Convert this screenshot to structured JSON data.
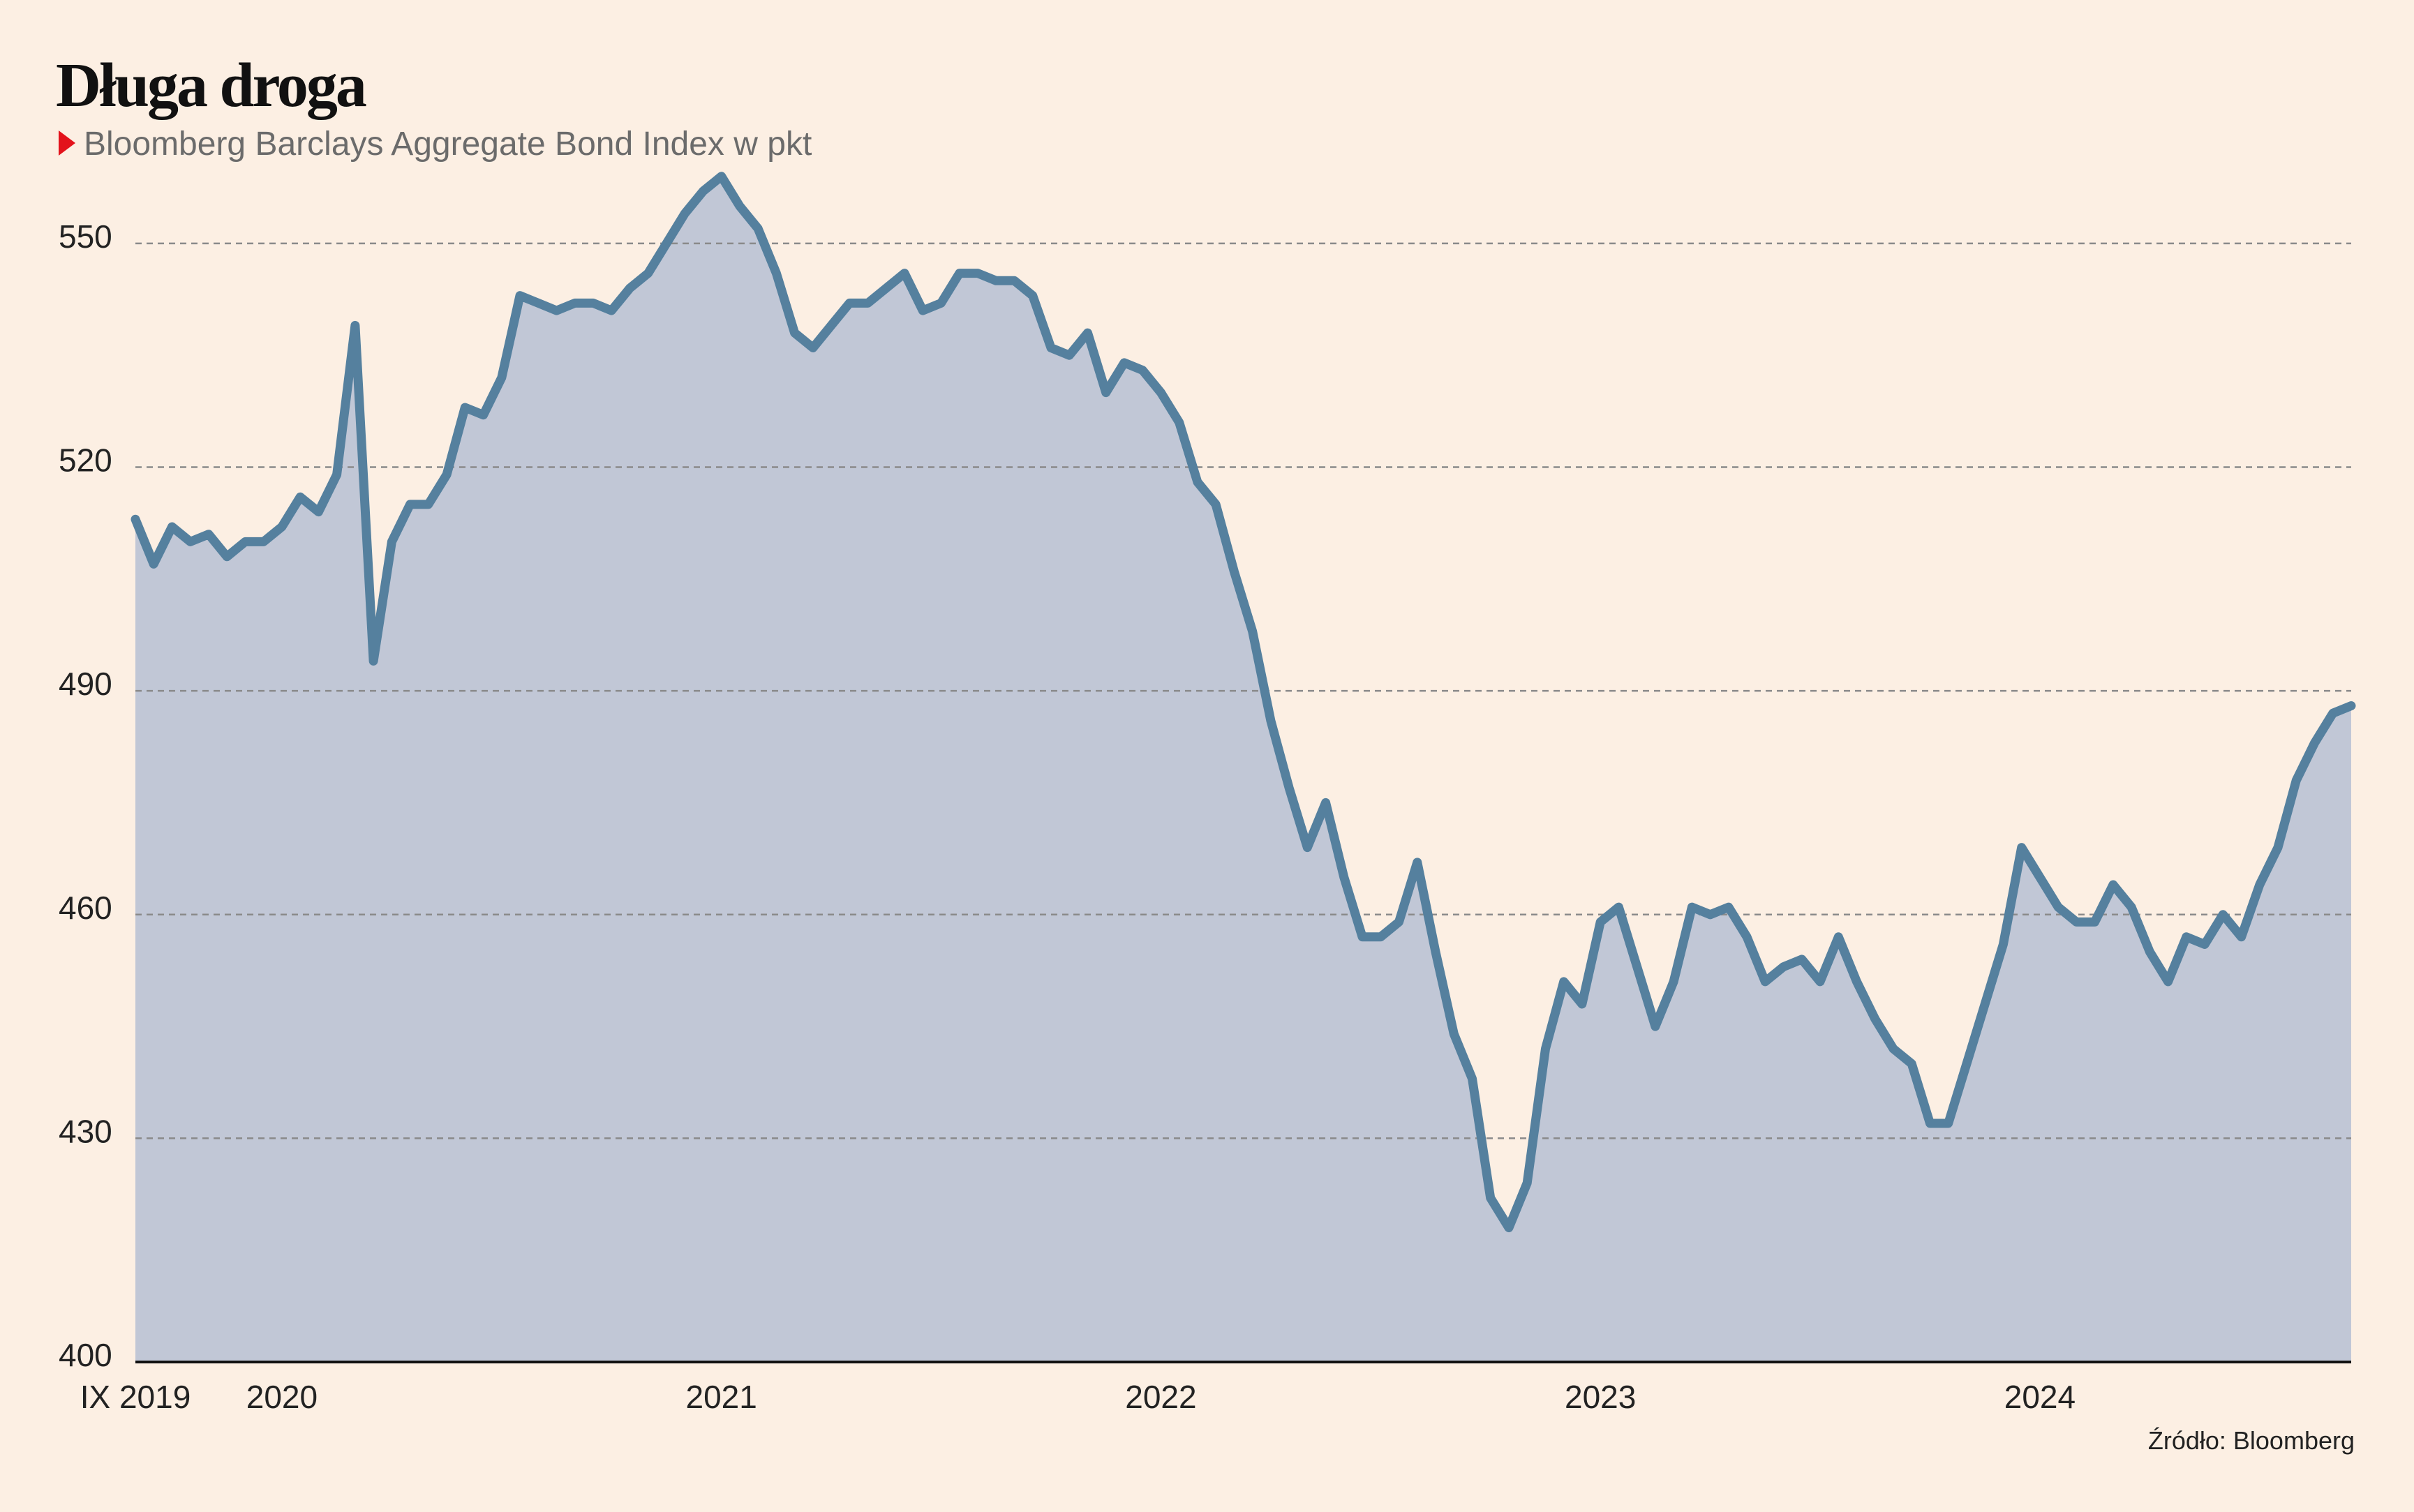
{
  "chart_data": {
    "type": "area",
    "title": "Długa droga",
    "subtitle": "Bloomberg Barclays Aggregate Bond Index w pkt",
    "source": "Źródło: Bloomberg",
    "categories": [
      "IX 2019",
      null,
      null,
      null,
      null,
      null,
      null,
      null,
      "2020",
      null,
      null,
      null,
      null,
      null,
      null,
      null,
      null,
      null,
      null,
      null,
      null,
      null,
      null,
      null,
      null,
      null,
      null,
      null,
      null,
      null,
      null,
      null,
      "2021",
      null,
      null,
      null,
      null,
      null,
      null,
      null,
      null,
      null,
      null,
      null,
      null,
      null,
      null,
      null,
      null,
      null,
      null,
      null,
      null,
      null,
      null,
      null,
      "2022",
      null,
      null,
      null,
      null,
      null,
      null,
      null,
      null,
      null,
      null,
      null,
      null,
      null,
      null,
      null,
      null,
      null,
      null,
      null,
      null,
      null,
      null,
      null,
      "2023",
      null,
      null,
      null,
      null,
      null,
      null,
      null,
      null,
      null,
      null,
      null,
      null,
      null,
      null,
      null,
      null,
      null,
      null,
      null,
      null,
      null,
      null,
      null,
      "2024",
      null,
      null,
      null,
      null,
      null,
      null,
      null,
      null,
      null,
      null,
      null,
      null,
      null,
      null,
      null,
      null,
      null
    ],
    "values": [
      513,
      507,
      512,
      510,
      511,
      508,
      510,
      510,
      512,
      516,
      514,
      519,
      539,
      494,
      510,
      515,
      515,
      519,
      528,
      527,
      532,
      543,
      542,
      541,
      542,
      542,
      541,
      544,
      546,
      550,
      554,
      557,
      559,
      555,
      552,
      546,
      538,
      536,
      539,
      542,
      542,
      544,
      546,
      541,
      542,
      546,
      546,
      545,
      545,
      543,
      536,
      535,
      538,
      530,
      534,
      533,
      530,
      526,
      518,
      515,
      506,
      498,
      486,
      477,
      469,
      475,
      465,
      457,
      457,
      459,
      467,
      455,
      444,
      438,
      422,
      418,
      424,
      442,
      451,
      448,
      459,
      461,
      453,
      445,
      451,
      461,
      460,
      461,
      457,
      451,
      453,
      454,
      451,
      457,
      451,
      446,
      442,
      440,
      432,
      432,
      440,
      448,
      456,
      469,
      465,
      461,
      459,
      459,
      464,
      461,
      455,
      451,
      457,
      456,
      460,
      457,
      464,
      469,
      478,
      483,
      487,
      488
    ],
    "color": "#55809e",
    "fill_color": "#c1c7d6",
    "ylim": [
      400,
      560
    ],
    "yticks": [
      400,
      430,
      460,
      490,
      520,
      550
    ],
    "grid": true
  }
}
